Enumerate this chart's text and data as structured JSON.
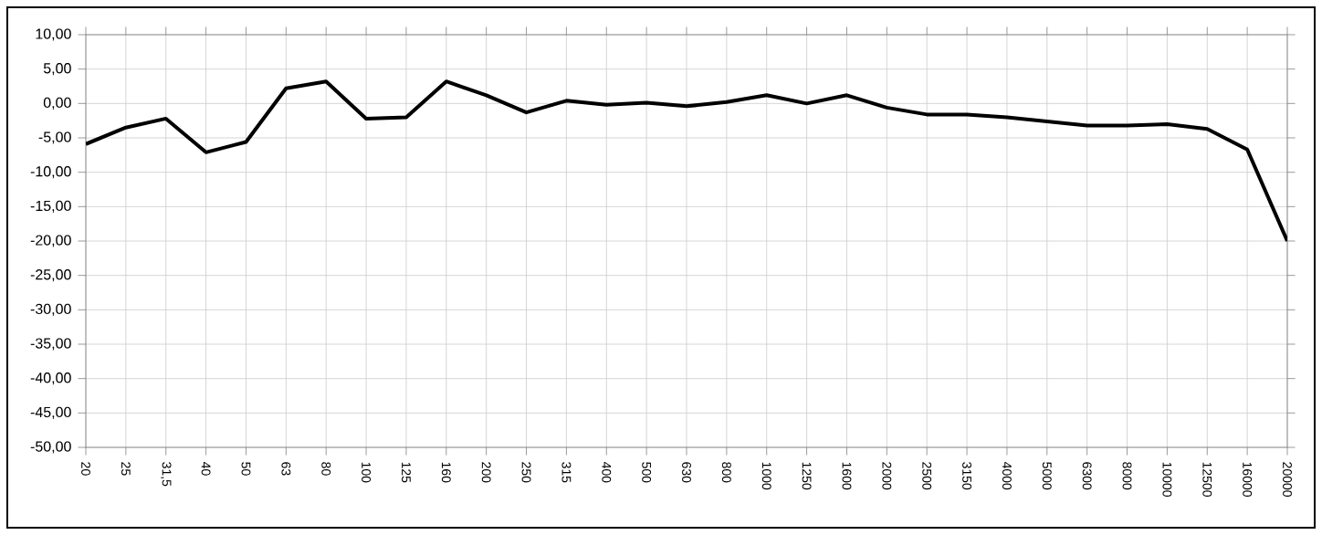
{
  "chart_data": {
    "type": "line",
    "categories": [
      "20",
      "25",
      "31,5",
      "40",
      "50",
      "63",
      "80",
      "100",
      "125",
      "160",
      "200",
      "250",
      "315",
      "400",
      "500",
      "630",
      "800",
      "1000",
      "1250",
      "1600",
      "2000",
      "2500",
      "3150",
      "4000",
      "5000",
      "6300",
      "8000",
      "10000",
      "12500",
      "16000",
      "20000"
    ],
    "series": [
      {
        "color": "#000000",
        "values": [
          -5.9,
          -3.5,
          -2.2,
          -7.1,
          -5.6,
          2.2,
          3.2,
          -2.2,
          -2.0,
          3.2,
          1.2,
          -1.3,
          0.4,
          -0.2,
          0.1,
          -0.4,
          0.2,
          1.2,
          0.0,
          1.2,
          -0.6,
          -1.6,
          -1.6,
          -2.0,
          -2.6,
          -3.2,
          -3.2,
          -3.0,
          -3.7,
          -6.7,
          -20.0
        ]
      }
    ],
    "ylim": [
      -50,
      10
    ],
    "yticks": [
      {
        "value": 10,
        "label": "10,00"
      },
      {
        "value": 5,
        "label": "5,00"
      },
      {
        "value": 0,
        "label": "0,00"
      },
      {
        "value": -5,
        "label": "-5,00"
      },
      {
        "value": -10,
        "label": "-10,00"
      },
      {
        "value": -15,
        "label": "-15,00"
      },
      {
        "value": -20,
        "label": "-20,00"
      },
      {
        "value": -25,
        "label": "-25,00"
      },
      {
        "value": -30,
        "label": "-30,00"
      },
      {
        "value": -35,
        "label": "-35,00"
      },
      {
        "value": -40,
        "label": "-40,00"
      },
      {
        "value": -45,
        "label": "-45,00"
      },
      {
        "value": -50,
        "label": "-50,00"
      }
    ],
    "grid": true,
    "marker": "none",
    "line_style": "solid"
  }
}
